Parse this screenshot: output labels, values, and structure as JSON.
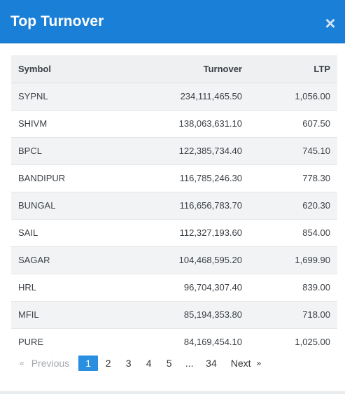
{
  "modal": {
    "title": "Top Turnover",
    "close_icon": "×"
  },
  "table": {
    "headers": {
      "symbol": "Symbol",
      "turnover": "Turnover",
      "ltp": "LTP"
    },
    "rows": [
      {
        "symbol": "SYPNL",
        "turnover": "234,111,465.50",
        "ltp": "1,056.00"
      },
      {
        "symbol": "SHIVM",
        "turnover": "138,063,631.10",
        "ltp": "607.50"
      },
      {
        "symbol": "BPCL",
        "turnover": "122,385,734.40",
        "ltp": "745.10"
      },
      {
        "symbol": "BANDIPUR",
        "turnover": "116,785,246.30",
        "ltp": "778.30"
      },
      {
        "symbol": "BUNGAL",
        "turnover": "116,656,783.70",
        "ltp": "620.30"
      },
      {
        "symbol": "SAIL",
        "turnover": "112,327,193.60",
        "ltp": "854.00"
      },
      {
        "symbol": "SAGAR",
        "turnover": "104,468,595.20",
        "ltp": "1,699.90"
      },
      {
        "symbol": "HRL",
        "turnover": "96,704,307.40",
        "ltp": "839.00"
      },
      {
        "symbol": "MFIL",
        "turnover": "85,194,353.80",
        "ltp": "718.00"
      },
      {
        "symbol": "PURE",
        "turnover": "84,169,454.10",
        "ltp": "1,025.00"
      }
    ]
  },
  "pagination": {
    "prev_arrow": "«",
    "prev_label": "Previous",
    "pages": [
      "1",
      "2",
      "3",
      "4",
      "5"
    ],
    "active_page": "1",
    "ellipsis": "...",
    "last_page": "34",
    "next_label": "Next",
    "next_arrow": "»"
  },
  "colors": {
    "header_bg": "#1a7fd6",
    "active_page_bg": "#2a8fe0",
    "table_head_bg": "#eef0f2",
    "row_stripe": "#f2f3f5"
  }
}
